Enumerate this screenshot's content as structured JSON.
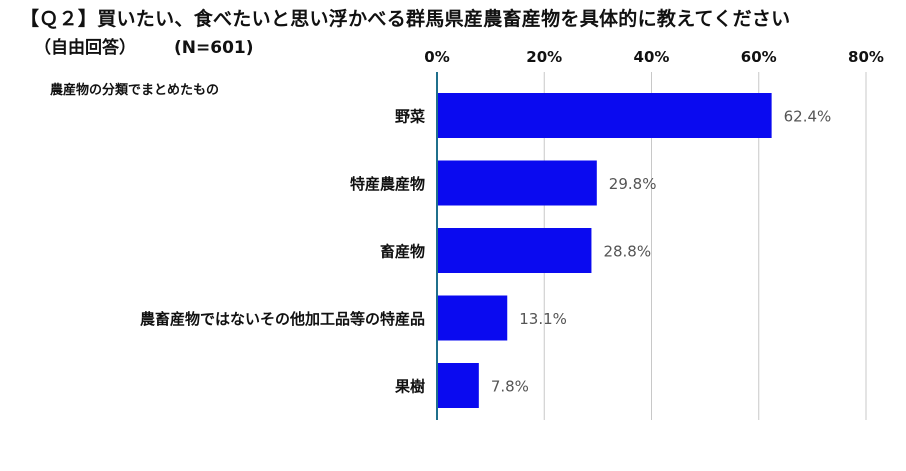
{
  "header": {
    "title": "【Ｑ２】買いたい、食べたいと思い浮かべる群馬県産農畜産物を具体的に教えてください",
    "subtitle_main": "（自由回答）",
    "subtitle_n": "(N=601)",
    "note": "農産物の分類でまとめたもの"
  },
  "chart_data": {
    "type": "bar",
    "orientation": "horizontal",
    "categories": [
      "野菜",
      "特産農産物",
      "畜産物",
      "農畜産物ではないその他加工品等の特産品",
      "果樹"
    ],
    "values": [
      62.4,
      29.8,
      28.8,
      13.1,
      7.8
    ],
    "value_labels": [
      "62.4%",
      "29.8%",
      "28.8%",
      "13.1%",
      "7.8%"
    ],
    "xlim": [
      0,
      80
    ],
    "xticks": [
      "0%",
      "20%",
      "40%",
      "60%",
      "80%"
    ],
    "grid": true,
    "bar_color": "#0a0af0",
    "axis_color": "#1f6f8b",
    "grid_color": "#c8c8c8"
  }
}
